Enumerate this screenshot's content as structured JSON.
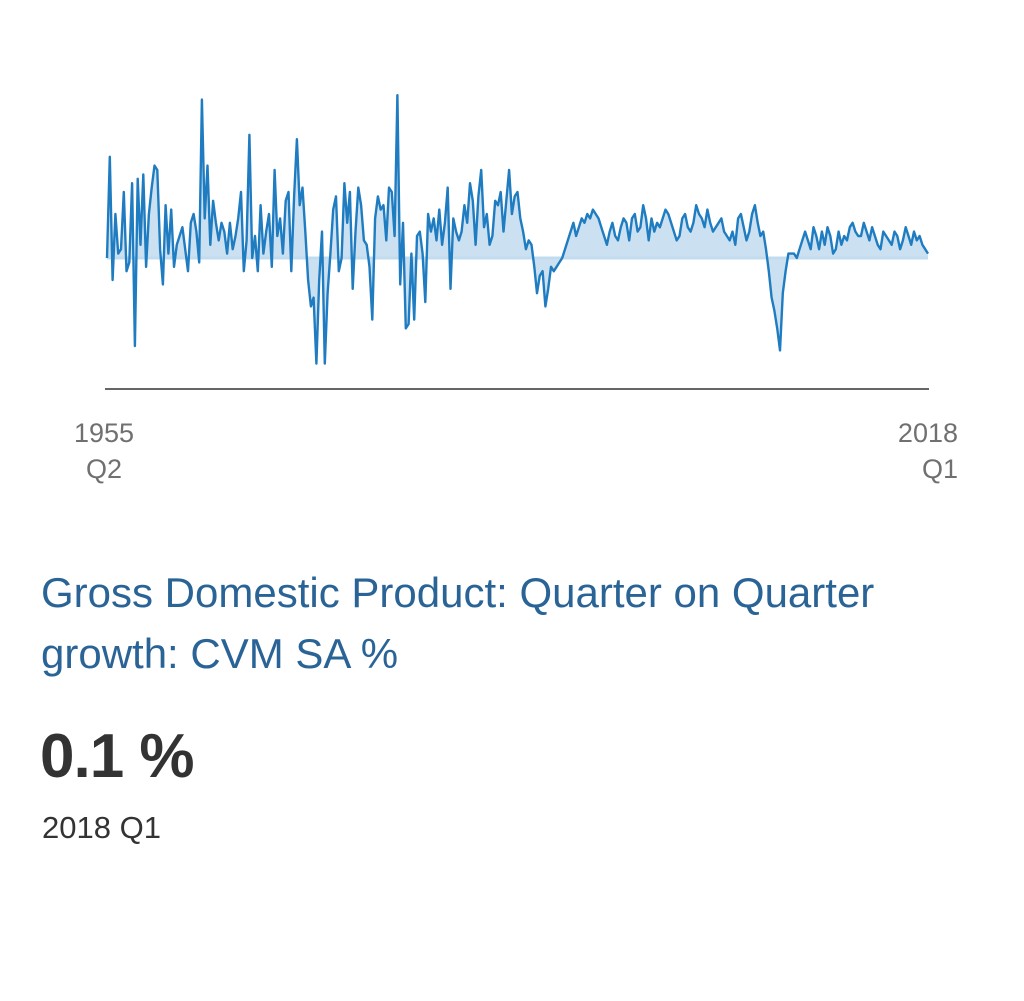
{
  "chart_data": {
    "type": "area",
    "x_start_label": [
      "1955",
      "Q2"
    ],
    "x_end_label": [
      "2018",
      "Q1"
    ],
    "series": [
      {
        "values": [
          0.0,
          2.3,
          -0.5,
          1.0,
          0.1,
          0.2,
          1.5,
          -0.3,
          -0.1,
          1.7,
          -2.0,
          1.8,
          0.3,
          1.9,
          -0.2,
          1.0,
          1.6,
          2.1,
          2.0,
          0.2,
          -0.6,
          1.2,
          0.1,
          1.1,
          -0.2,
          0.3,
          0.5,
          0.7,
          0.2,
          -0.3,
          0.8,
          1.0,
          0.6,
          -0.1,
          3.6,
          0.9,
          2.1,
          0.3,
          1.3,
          0.8,
          0.4,
          0.8,
          0.6,
          0.1,
          0.8,
          0.2,
          0.5,
          0.9,
          1.5,
          -0.3,
          0.4,
          2.8,
          0.0,
          0.5,
          -0.3,
          1.2,
          0.1,
          0.6,
          1.0,
          -0.2,
          2.0,
          0.5,
          0.9,
          0.1,
          1.3,
          1.5,
          -0.3,
          1.4,
          2.7,
          1.2,
          1.6,
          0.6,
          -0.5,
          -1.1,
          -0.9,
          -2.4,
          -0.5,
          0.6,
          -2.4,
          -0.8,
          0.1,
          1.1,
          1.4,
          -0.3,
          0.0,
          1.7,
          0.8,
          1.5,
          -0.7,
          0.6,
          1.6,
          1.2,
          0.4,
          0.3,
          -0.2,
          -1.4,
          0.9,
          1.4,
          1.1,
          1.2,
          0.4,
          1.6,
          1.5,
          0.5,
          3.7,
          -0.6,
          0.8,
          -1.6,
          -1.5,
          0.1,
          -1.4,
          0.5,
          0.6,
          0.1,
          -1.0,
          1.0,
          0.6,
          0.9,
          0.4,
          1.1,
          0.3,
          0.8,
          1.6,
          -0.7,
          0.9,
          0.6,
          0.4,
          0.6,
          1.2,
          0.8,
          1.7,
          1.3,
          0.3,
          1.4,
          2.0,
          0.7,
          1.0,
          0.3,
          0.5,
          1.3,
          1.2,
          1.5,
          0.6,
          1.3,
          2.0,
          1.0,
          1.4,
          1.5,
          0.9,
          0.6,
          0.2,
          0.4,
          0.3,
          -0.2,
          -0.8,
          -0.4,
          -0.3,
          -1.1,
          -0.7,
          -0.2,
          -0.3,
          -0.2,
          -0.1,
          0.0,
          0.2,
          0.4,
          0.6,
          0.8,
          0.5,
          0.7,
          0.9,
          0.8,
          1.0,
          0.9,
          1.1,
          1.0,
          0.9,
          0.7,
          0.5,
          0.3,
          0.6,
          0.8,
          0.5,
          0.4,
          0.7,
          0.9,
          0.8,
          0.4,
          0.9,
          1.0,
          0.6,
          0.7,
          1.2,
          0.9,
          0.4,
          0.9,
          0.6,
          0.8,
          0.7,
          0.9,
          1.1,
          1.0,
          0.8,
          0.6,
          0.4,
          0.5,
          0.9,
          1.0,
          0.7,
          0.6,
          0.8,
          1.2,
          1.0,
          0.9,
          0.7,
          1.1,
          0.8,
          0.6,
          0.7,
          0.8,
          0.9,
          0.6,
          0.5,
          0.4,
          0.6,
          0.3,
          0.9,
          1.0,
          0.7,
          0.4,
          0.6,
          1.0,
          1.2,
          0.8,
          0.5,
          0.6,
          0.2,
          -0.3,
          -0.9,
          -1.2,
          -1.6,
          -2.1,
          -0.8,
          -0.3,
          0.1,
          0.1,
          0.1,
          0.0,
          0.2,
          0.4,
          0.6,
          0.4,
          0.2,
          0.7,
          0.5,
          0.2,
          0.6,
          0.3,
          0.7,
          0.5,
          0.1,
          0.2,
          0.6,
          0.3,
          0.5,
          0.4,
          0.7,
          0.8,
          0.6,
          0.5,
          0.5,
          0.8,
          0.6,
          0.4,
          0.7,
          0.5,
          0.3,
          0.2,
          0.6,
          0.5,
          0.4,
          0.3,
          0.6,
          0.5,
          0.2,
          0.4,
          0.7,
          0.5,
          0.3,
          0.6,
          0.4,
          0.5,
          0.3,
          0.2,
          0.1
        ]
      }
    ],
    "line_color": "#1f7cc1",
    "fill_color": "#c2dcef",
    "axis_color": "#666666",
    "grid": false
  },
  "card": {
    "title": "Gross Domestic Product: Quarter on Quarter growth: CVM SA %",
    "value": "0.1 %",
    "period": "2018 Q1"
  }
}
